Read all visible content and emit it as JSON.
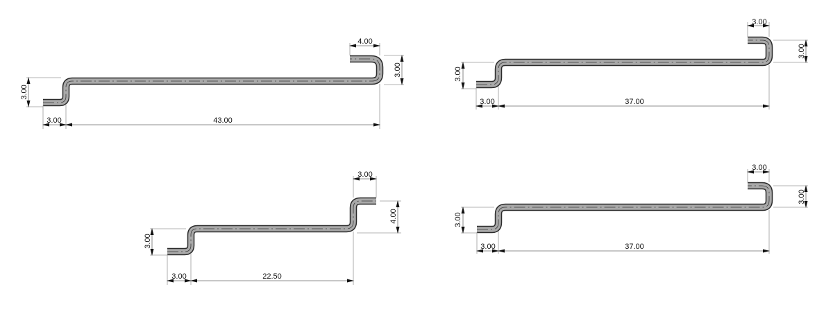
{
  "drawings": [
    {
      "id": "drawing-1",
      "dimensions": {
        "left_offset": "3.00",
        "length": "43.00",
        "left_height": "3.00",
        "right_height": "3.00",
        "hook_width": "4.00"
      }
    },
    {
      "id": "drawing-2",
      "dimensions": {
        "left_offset": "3.00",
        "length": "37.00",
        "left_height": "3.00",
        "right_height": "3.00",
        "hook_width": "3.00"
      }
    },
    {
      "id": "drawing-3",
      "dimensions": {
        "left_offset": "3.00",
        "length": "22.50",
        "left_height": "3.00",
        "right_height": "4.00",
        "hook_width": "3.00"
      }
    },
    {
      "id": "drawing-4",
      "dimensions": {
        "left_offset": "3.00",
        "length": "37.00",
        "left_height": "3.00",
        "right_height": "3.00",
        "hook_width": "3.00"
      }
    }
  ]
}
